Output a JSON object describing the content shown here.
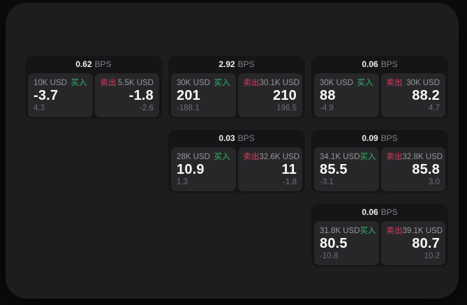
{
  "theme": {
    "bg_outer": "#0b0b0b",
    "bg_panel": "#1d1d1f",
    "card_bg": "#151517",
    "subpanel_bg": "#27272a",
    "accent_buy_green": "#32b768",
    "accent_sell_red": "#dc3c5f",
    "text_primary": "#fafafa",
    "text_secondary": "#98989d",
    "text_dim": "#6f6f74"
  },
  "labels": {
    "bps_unit": "BPS",
    "buy": "买入",
    "sell": "卖出"
  },
  "cards": [
    {
      "row": 1,
      "col": 1,
      "bps": "0.62",
      "buy": {
        "amount": "10K USD",
        "value": "-3.7",
        "delta": "4.3"
      },
      "sell": {
        "amount": "5.5K USD",
        "value": "-1.8",
        "delta": "-2.6"
      }
    },
    {
      "row": 1,
      "col": 2,
      "bps": "2.92",
      "buy": {
        "amount": "30K USD",
        "value": "201",
        "delta": "-188.1"
      },
      "sell": {
        "amount": "30.1K USD",
        "value": "210",
        "delta": "196.5"
      }
    },
    {
      "row": 1,
      "col": 3,
      "bps": "0.06",
      "buy": {
        "amount": "30K USD",
        "value": "88",
        "delta": "-4.9"
      },
      "sell": {
        "amount": "30K USD",
        "value": "88.2",
        "delta": "4.7"
      }
    },
    {
      "row": 2,
      "col": 2,
      "bps": "0.03",
      "buy": {
        "amount": "28K USD",
        "value": "10.9",
        "delta": "1.3"
      },
      "sell": {
        "amount": "32.6K USD",
        "value": "11",
        "delta": "-1.8"
      }
    },
    {
      "row": 2,
      "col": 3,
      "bps": "0.09",
      "buy": {
        "amount": "34.1K USD",
        "value": "85.5",
        "delta": "-3.1"
      },
      "sell": {
        "amount": "32.8K USD",
        "value": "85.8",
        "delta": "3.0"
      }
    },
    {
      "row": 3,
      "col": 3,
      "bps": "0.06",
      "buy": {
        "amount": "31.8K USD",
        "value": "80.5",
        "delta": "-10.8"
      },
      "sell": {
        "amount": "39.1K USD",
        "value": "80.7",
        "delta": "10.2"
      }
    }
  ]
}
